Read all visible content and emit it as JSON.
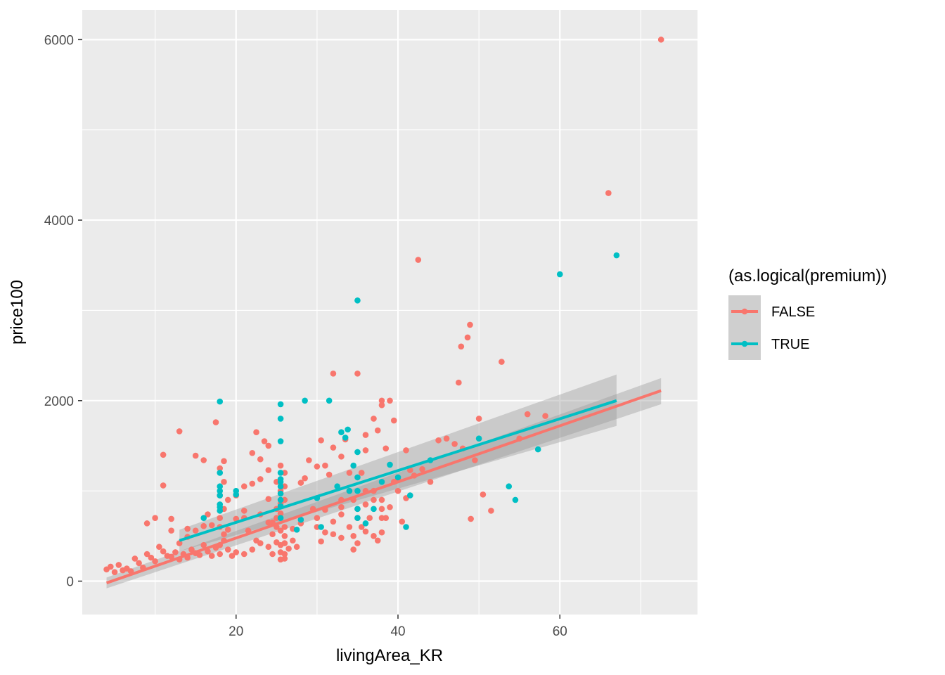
{
  "chart_data": {
    "type": "scatter",
    "title": "",
    "xlabel": "livingArea_KR",
    "ylabel": "price100",
    "xlim": [
      1,
      77
    ],
    "ylim": [
      -370,
      6330
    ],
    "x_ticks": [
      20,
      40,
      60
    ],
    "y_ticks": [
      0,
      2000,
      4000,
      6000
    ],
    "x_tick_labels": [
      "20",
      "40",
      "60"
    ],
    "y_tick_labels": [
      "0",
      "2000",
      "4000",
      "6000"
    ],
    "grid": true,
    "panel_background": "#ebebeb",
    "legend": {
      "title": "(as.logical(premium))",
      "placement": "right",
      "entries": [
        {
          "label": "FALSE",
          "color": "#F8766D"
        },
        {
          "label": "TRUE",
          "color": "#00BFC4"
        }
      ]
    },
    "series": [
      {
        "legend_label": "FALSE",
        "color": "#F8766D",
        "fit": {
          "x": [
            4,
            72.5
          ],
          "y": [
            -20,
            2110
          ],
          "ci_low_start": -80,
          "ci_high_start": 40,
          "ci_low_end": 1960,
          "ci_high_end": 2250
        },
        "points": [
          [
            4,
            130
          ],
          [
            4.5,
            160
          ],
          [
            5,
            100
          ],
          [
            5.5,
            180
          ],
          [
            6,
            120
          ],
          [
            6.5,
            140
          ],
          [
            7,
            110
          ],
          [
            7.5,
            250
          ],
          [
            8,
            200
          ],
          [
            8.5,
            150
          ],
          [
            9,
            300
          ],
          [
            9.5,
            260
          ],
          [
            10,
            220
          ],
          [
            10.5,
            380
          ],
          [
            11,
            330
          ],
          [
            11.5,
            280
          ],
          [
            12,
            270
          ],
          [
            12.5,
            320
          ],
          [
            13,
            240
          ],
          [
            13.5,
            300
          ],
          [
            14,
            260
          ],
          [
            14.5,
            350
          ],
          [
            15,
            310
          ],
          [
            15.5,
            290
          ],
          [
            16,
            400
          ],
          [
            16.5,
            330
          ],
          [
            17,
            280
          ],
          [
            17.5,
            370
          ],
          [
            18,
            300
          ],
          [
            18.5,
            450
          ],
          [
            19,
            350
          ],
          [
            19.5,
            280
          ],
          [
            20,
            320
          ],
          [
            21,
            300
          ],
          [
            22,
            350
          ],
          [
            23,
            420
          ],
          [
            24,
            380
          ],
          [
            25,
            430
          ],
          [
            25.5,
            320
          ],
          [
            26,
            250
          ],
          [
            24.5,
            520
          ],
          [
            25,
            600
          ],
          [
            25.5,
            750
          ],
          [
            26,
            900
          ],
          [
            25.5,
            1000
          ],
          [
            26,
            1200
          ],
          [
            25.5,
            1280
          ],
          [
            25,
            1100
          ],
          [
            26,
            1050
          ],
          [
            25.5,
            860
          ],
          [
            24.5,
            650
          ],
          [
            25,
            700
          ],
          [
            26,
            500
          ],
          [
            25.5,
            400
          ],
          [
            26,
            300
          ],
          [
            25.5,
            240
          ],
          [
            26,
            600
          ],
          [
            25,
            800
          ],
          [
            25.5,
            560
          ],
          [
            26,
            420
          ],
          [
            18,
            600
          ],
          [
            18.5,
            800
          ],
          [
            18,
            950
          ],
          [
            18.5,
            1100
          ],
          [
            18,
            1250
          ],
          [
            18.5,
            1330
          ],
          [
            17.5,
            1760
          ],
          [
            18,
            700
          ],
          [
            18.5,
            520
          ],
          [
            18,
            400
          ],
          [
            11,
            1400
          ],
          [
            11,
            1060
          ],
          [
            13,
            1660
          ],
          [
            15,
            1390
          ],
          [
            16,
            1340
          ],
          [
            16.5,
            740
          ],
          [
            14,
            580
          ],
          [
            12,
            690
          ],
          [
            10,
            700
          ],
          [
            9,
            640
          ],
          [
            12,
            560
          ],
          [
            13,
            420
          ],
          [
            14,
            490
          ],
          [
            15,
            560
          ],
          [
            16,
            610
          ],
          [
            17,
            620
          ],
          [
            19,
            570
          ],
          [
            20,
            690
          ],
          [
            21,
            700
          ],
          [
            21,
            780
          ],
          [
            21.5,
            560
          ],
          [
            22,
            1420
          ],
          [
            22.5,
            1650
          ],
          [
            23,
            1350
          ],
          [
            23.5,
            1550
          ],
          [
            24,
            1500
          ],
          [
            24,
            1230
          ],
          [
            23,
            1130
          ],
          [
            22,
            1080
          ],
          [
            21,
            1050
          ],
          [
            20,
            950
          ],
          [
            19,
            900
          ],
          [
            23,
            740
          ],
          [
            24,
            910
          ],
          [
            24,
            650
          ],
          [
            22.5,
            450
          ],
          [
            27,
            580
          ],
          [
            27.5,
            380
          ],
          [
            28,
            1090
          ],
          [
            28.5,
            1140
          ],
          [
            29,
            1340
          ],
          [
            30,
            1270
          ],
          [
            30.5,
            1560
          ],
          [
            31,
            1280
          ],
          [
            31.5,
            1180
          ],
          [
            32,
            2300
          ],
          [
            32,
            1480
          ],
          [
            33,
            1380
          ],
          [
            33.5,
            1570
          ],
          [
            34,
            1200
          ],
          [
            34,
            1000
          ],
          [
            34.5,
            900
          ],
          [
            35,
            800
          ],
          [
            35,
            700
          ],
          [
            34,
            600
          ],
          [
            34.5,
            500
          ],
          [
            35,
            420
          ],
          [
            34.5,
            350
          ],
          [
            35,
            2300
          ],
          [
            35.5,
            1200
          ],
          [
            36,
            1000
          ],
          [
            36,
            850
          ],
          [
            36.5,
            700
          ],
          [
            35.5,
            600
          ],
          [
            36,
            550
          ],
          [
            33,
            480
          ],
          [
            32,
            520
          ],
          [
            31,
            540
          ],
          [
            30,
            600
          ],
          [
            30,
            700
          ],
          [
            30.5,
            440
          ],
          [
            31,
            790
          ],
          [
            32,
            660
          ],
          [
            33,
            740
          ],
          [
            33,
            900
          ],
          [
            36,
            1620
          ],
          [
            37,
            1800
          ],
          [
            37.5,
            1670
          ],
          [
            38,
            2000
          ],
          [
            38,
            1950
          ],
          [
            38.5,
            1470
          ],
          [
            39,
            2000
          ],
          [
            39.5,
            1780
          ],
          [
            37,
            900
          ],
          [
            38,
            800
          ],
          [
            38.5,
            700
          ],
          [
            38,
            540
          ],
          [
            37,
            500
          ],
          [
            37.5,
            450
          ],
          [
            38,
            900
          ],
          [
            39,
            820
          ],
          [
            40,
            1130
          ],
          [
            40.5,
            660
          ],
          [
            41,
            920
          ],
          [
            41.5,
            1230
          ],
          [
            42,
            1170
          ],
          [
            43,
            1240
          ],
          [
            44,
            1100
          ],
          [
            45,
            1560
          ],
          [
            46,
            1580
          ],
          [
            47,
            1520
          ],
          [
            48,
            1470
          ],
          [
            42.5,
            3560
          ],
          [
            47.5,
            2200
          ],
          [
            47.8,
            2600
          ],
          [
            48.6,
            2700
          ],
          [
            48.9,
            2840
          ],
          [
            49,
            690
          ],
          [
            49.5,
            1340
          ],
          [
            50,
            1800
          ],
          [
            50.5,
            960
          ],
          [
            51.5,
            780
          ],
          [
            52.8,
            2430
          ],
          [
            55,
            1580
          ],
          [
            56,
            1850
          ],
          [
            58.2,
            1830
          ],
          [
            66,
            4300
          ],
          [
            72.5,
            6000
          ],
          [
            38,
            700
          ],
          [
            37,
            1000
          ],
          [
            36,
            1450
          ],
          [
            40,
            1000
          ],
          [
            41,
            1450
          ],
          [
            39.5,
            1100
          ],
          [
            33,
            820
          ],
          [
            29.5,
            800
          ],
          [
            28,
            640
          ],
          [
            27,
            450
          ],
          [
            26.5,
            360
          ],
          [
            24.5,
            300
          ]
        ]
      },
      {
        "legend_label": "TRUE",
        "color": "#00BFC4",
        "fit": {
          "x": [
            13,
            67
          ],
          "y": [
            450,
            2000
          ],
          "ci_low_start": 330,
          "ci_high_start": 570,
          "ci_low_end": 1720,
          "ci_high_end": 2290
        },
        "points": [
          [
            16,
            700
          ],
          [
            18,
            1990
          ],
          [
            18,
            820
          ],
          [
            18,
            780
          ],
          [
            18,
            850
          ],
          [
            18,
            1200
          ],
          [
            18,
            1050
          ],
          [
            18,
            950
          ],
          [
            18,
            1000
          ],
          [
            20,
            960
          ],
          [
            20,
            1000
          ],
          [
            25.5,
            1960
          ],
          [
            25.5,
            1800
          ],
          [
            25.5,
            1550
          ],
          [
            25.5,
            1200
          ],
          [
            25.5,
            1130
          ],
          [
            25.5,
            1100
          ],
          [
            25.5,
            1050
          ],
          [
            25.5,
            970
          ],
          [
            25.5,
            900
          ],
          [
            25.5,
            830
          ],
          [
            25.5,
            700
          ],
          [
            27.5,
            570
          ],
          [
            28.5,
            2000
          ],
          [
            28,
            680
          ],
          [
            30,
            920
          ],
          [
            30.5,
            600
          ],
          [
            31.5,
            2000
          ],
          [
            32.5,
            1050
          ],
          [
            33,
            1650
          ],
          [
            33.5,
            1590
          ],
          [
            33.8,
            1680
          ],
          [
            34,
            1000
          ],
          [
            34.5,
            1280
          ],
          [
            35,
            3110
          ],
          [
            35,
            1430
          ],
          [
            35,
            1150
          ],
          [
            35,
            1000
          ],
          [
            35,
            800
          ],
          [
            35,
            700
          ],
          [
            36,
            640
          ],
          [
            37,
            800
          ],
          [
            38,
            1100
          ],
          [
            39,
            1290
          ],
          [
            40,
            1150
          ],
          [
            41,
            600
          ],
          [
            41.5,
            950
          ],
          [
            44,
            1340
          ],
          [
            50,
            1580
          ],
          [
            53.7,
            1050
          ],
          [
            54.5,
            900
          ],
          [
            57.3,
            1460
          ],
          [
            60,
            3400
          ],
          [
            67,
            3610
          ]
        ]
      }
    ]
  }
}
